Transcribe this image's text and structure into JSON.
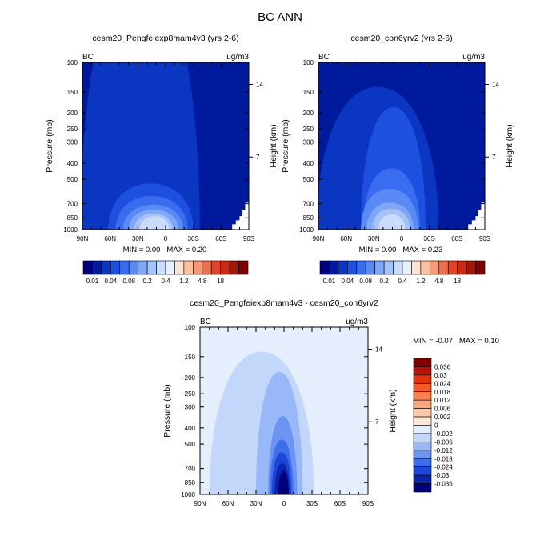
{
  "figure": {
    "title": "BC ANN"
  },
  "chart_data": [
    {
      "type": "contour",
      "title": "cesm20_Pengfeiexp8mam4v3 (yrs 2-6)",
      "left_label": "BC",
      "right_label": "ug/m3",
      "xlabel": "",
      "ylabel": "Pressure (mb)",
      "ylabel_right": "Height (km)",
      "x_ticks": [
        "90N",
        "60N",
        "30N",
        "0",
        "30S",
        "60S",
        "90S"
      ],
      "x_values": [
        90,
        60,
        30,
        0,
        -30,
        -60,
        -90
      ],
      "y_ticks": [
        "100",
        "150",
        "200",
        "250",
        "300",
        "400",
        "500",
        "700",
        "850",
        "1000"
      ],
      "y_values": [
        100,
        150,
        200,
        250,
        300,
        400,
        500,
        700,
        850,
        1000
      ],
      "y_scale": "log",
      "ylim": [
        1000,
        100
      ],
      "height_ticks": [
        "14",
        "7"
      ],
      "height_values": [
        14,
        7
      ],
      "min_label": "MIN =",
      "min_value": "0.00",
      "max_label": "MAX =",
      "max_value": "0.20",
      "colorbar": {
        "orientation": "horizontal",
        "labels": [
          "0.01",
          "0.04",
          "0.08",
          "0.2",
          "0.4",
          "1.2",
          "4.8",
          "18"
        ],
        "colors": [
          "#00007f",
          "#001a9e",
          "#0a36c2",
          "#1e50e0",
          "#3a6cf0",
          "#5a8af5",
          "#7fa6f7",
          "#a5c2fa",
          "#c9dcfc",
          "#e8f0fe",
          "#fde3d2",
          "#fbc1a1",
          "#f79b76",
          "#f06e4c",
          "#e24427",
          "#c82a12",
          "#a51508",
          "#7f0000"
        ]
      },
      "contours": [
        {
          "level": 2,
          "lat_extent": [
            92,
            -37
          ],
          "peak": 30
        },
        {
          "level": 3,
          "lat_extent": [
            62,
            -30
          ],
          "peak": 530
        },
        {
          "level": 4,
          "lat_extent": [
            54,
            -24
          ],
          "peak": 630
        },
        {
          "level": 5,
          "lat_extent": [
            46,
            -19
          ],
          "peak": 710
        },
        {
          "level": 6,
          "lat_extent": [
            40,
            -14
          ],
          "peak": 760
        },
        {
          "level": 7,
          "lat_extent": [
            34,
            -8
          ],
          "peak": 800
        },
        {
          "level": 8,
          "lat_extent": [
            28,
            -4
          ],
          "peak": 830
        }
      ]
    },
    {
      "type": "contour",
      "title": "cesm20_con6yrv2 (yrs 2-6)",
      "left_label": "BC",
      "right_label": "ug/m3",
      "xlabel": "",
      "ylabel": "Pressure (mb)",
      "ylabel_right": "Height (km)",
      "x_ticks": [
        "90N",
        "60N",
        "30N",
        "0",
        "30S",
        "60S",
        "90S"
      ],
      "x_values": [
        90,
        60,
        30,
        0,
        -30,
        -60,
        -90
      ],
      "y_ticks": [
        "100",
        "150",
        "200",
        "250",
        "300",
        "400",
        "500",
        "700",
        "850",
        "1000"
      ],
      "y_values": [
        100,
        150,
        200,
        250,
        300,
        400,
        500,
        700,
        850,
        1000
      ],
      "y_scale": "log",
      "ylim": [
        1000,
        100
      ],
      "height_ticks": [
        "14",
        "7"
      ],
      "height_values": [
        14,
        7
      ],
      "min_label": "MIN =",
      "min_value": "0.00",
      "max_label": "MAX =",
      "max_value": "0.23",
      "colorbar": {
        "orientation": "horizontal",
        "labels": [
          "0.01",
          "0.04",
          "0.08",
          "0.2",
          "0.4",
          "1.2",
          "4.8",
          "18"
        ],
        "colors": [
          "#00007f",
          "#001a9e",
          "#0a36c2",
          "#1e50e0",
          "#3a6cf0",
          "#5a8af5",
          "#7fa6f7",
          "#a5c2fa",
          "#c9dcfc",
          "#e8f0fe",
          "#fde3d2",
          "#fbc1a1",
          "#f79b76",
          "#f06e4c",
          "#e24427",
          "#c82a12",
          "#a51508",
          "#7f0000"
        ]
      },
      "contours": [
        {
          "level": 2,
          "lat_extent": [
            92,
            -40
          ],
          "peak": 140
        },
        {
          "level": 3,
          "lat_extent": [
            44,
            -26
          ],
          "peak": 185
        },
        {
          "level": 4,
          "lat_extent": [
            42,
            -20
          ],
          "peak": 430
        },
        {
          "level": 5,
          "lat_extent": [
            44,
            -18
          ],
          "peak": 570
        },
        {
          "level": 6,
          "lat_extent": [
            38,
            -13
          ],
          "peak": 690
        },
        {
          "level": 7,
          "lat_extent": [
            32,
            -9
          ],
          "peak": 750
        },
        {
          "level": 8,
          "lat_extent": [
            25,
            -4
          ],
          "peak": 810
        }
      ]
    },
    {
      "type": "contour",
      "title": "cesm20_Pengfeiexp8mam4v3 - cesm20_con6yrv2",
      "left_label": "BC",
      "right_label": "ug/m3",
      "xlabel": "",
      "ylabel": "Pressure (mb)",
      "ylabel_right": "Height (km)",
      "x_ticks": [
        "90N",
        "60N",
        "30N",
        "0",
        "30S",
        "60S",
        "90S"
      ],
      "x_values": [
        90,
        60,
        30,
        0,
        -30,
        -60,
        -90
      ],
      "y_ticks": [
        "100",
        "150",
        "200",
        "250",
        "300",
        "400",
        "500",
        "700",
        "850",
        "1000"
      ],
      "y_values": [
        100,
        150,
        200,
        250,
        300,
        400,
        500,
        700,
        850,
        1000
      ],
      "y_scale": "log",
      "ylim": [
        1000,
        100
      ],
      "height_ticks": [
        "14",
        "7"
      ],
      "height_values": [
        14,
        7
      ],
      "min_label": "MIN =",
      "min_value": "-0.07",
      "max_label": "MAX =",
      "max_value": "0.10",
      "colorbar": {
        "orientation": "vertical",
        "labels": [
          "0.036",
          "0.03",
          "0.024",
          "0.018",
          "0.012",
          "0.006",
          "0.002",
          "0",
          "-0.002",
          "-0.006",
          "-0.012",
          "-0.018",
          "-0.024",
          "-0.03",
          "-0.036"
        ],
        "colors": [
          "#7f0000",
          "#b2140a",
          "#e0350f",
          "#f55a2a",
          "#f9804f",
          "#fba57a",
          "#fcc8a6",
          "#fde8d8",
          "#e4eefd",
          "#c3d7fb",
          "#98b8f7",
          "#6c94f2",
          "#3f6eea",
          "#1c46d6",
          "#0a24b0",
          "#00007f"
        ]
      },
      "contours": [
        {
          "level": 8,
          "lat_extent": [
            92,
            -92
          ],
          "peak": 100
        },
        {
          "level": 9,
          "lat_extent": [
            80,
            -32
          ],
          "peak": 140
        },
        {
          "level": 10,
          "lat_extent": [
            30,
            -20
          ],
          "peak": 185
        },
        {
          "level": 11,
          "lat_extent": [
            17,
            -14
          ],
          "peak": 340
        },
        {
          "level": 12,
          "lat_extent": [
            15,
            -10
          ],
          "peak": 470
        },
        {
          "level": 13,
          "lat_extent": [
            13,
            -8
          ],
          "peak": 560
        },
        {
          "level": 14,
          "lat_extent": [
            10,
            -6
          ],
          "peak": 650
        },
        {
          "level": 15,
          "lat_extent": [
            6,
            -5
          ],
          "peak": 725
        }
      ]
    }
  ]
}
